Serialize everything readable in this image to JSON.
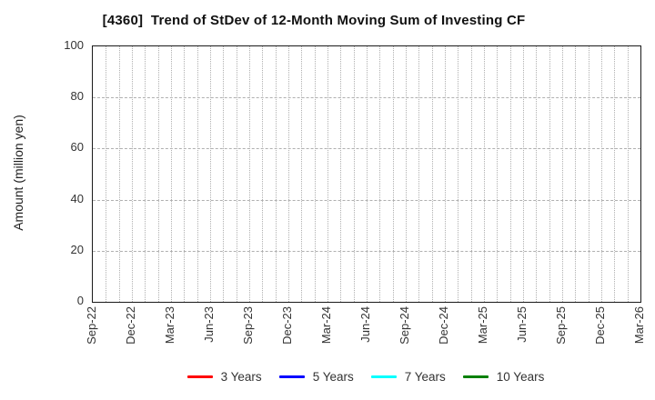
{
  "chart_data": {
    "type": "line",
    "title": "[4360]  Trend of StDev of 12-Month Moving Sum of Investing CF",
    "ylabel": "Amount (million yen)",
    "ylim": [
      0,
      100
    ],
    "yticks": [
      0,
      20,
      40,
      60,
      80,
      100
    ],
    "xticklabels": [
      "Sep-22",
      "Dec-22",
      "Mar-23",
      "Jun-23",
      "Sep-23",
      "Dec-23",
      "Mar-24",
      "Jun-24",
      "Sep-24",
      "Dec-24",
      "Mar-25",
      "Jun-25",
      "Sep-25",
      "Dec-25",
      "Mar-26"
    ],
    "x_minor_divisions": 42,
    "grid": true,
    "legend_position": "bottom",
    "series": [
      {
        "name": "3 Years",
        "color": "#ff0000",
        "values": []
      },
      {
        "name": "5 Years",
        "color": "#0000ff",
        "values": []
      },
      {
        "name": "7 Years",
        "color": "#00ffff",
        "values": []
      },
      {
        "name": "10 Years",
        "color": "#008000",
        "values": []
      }
    ]
  },
  "colors": {
    "axis_border": "#1a1a1a",
    "gridline": "#b0b0b0",
    "tick_text": "#333333",
    "title_text": "#111111"
  }
}
